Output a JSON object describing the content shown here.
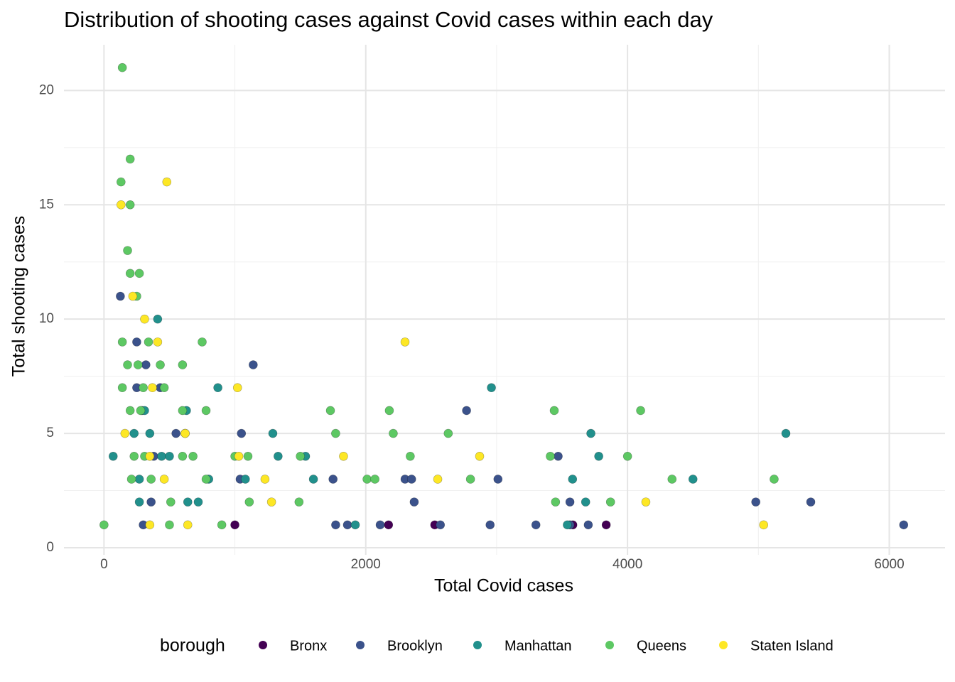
{
  "chart_data": {
    "type": "scatter",
    "title": "Distribution of shooting cases against Covid cases within each day",
    "x_label": "Total Covid cases",
    "y_label": "Total shooting cases",
    "legend_title": "borough",
    "legend_position": "bottom",
    "grid": true,
    "xlim": [
      -306,
      6426
    ],
    "ylim": [
      0,
      22
    ],
    "xticks": [
      0,
      2000,
      4000,
      6000
    ],
    "yticks": [
      0,
      5,
      10,
      15,
      20
    ],
    "x_minor_ticks": [
      1000,
      3000,
      5000
    ],
    "y_minor_ticks": [
      2.5,
      7.5,
      12.5,
      17.5
    ],
    "series": [
      {
        "name": "Bronx",
        "color": "#440154",
        "x": [
          1000,
          2174,
          2527,
          3582,
          3837
        ],
        "values": [
          1,
          1,
          1,
          1,
          1
        ]
      },
      {
        "name": "Brooklyn",
        "color": "#3b528b",
        "x": [
          125,
          250,
          250,
          320,
          290,
          430,
          550,
          380,
          360,
          300,
          1140,
          1050,
          1040,
          1750,
          1770,
          1860,
          2110,
          2300,
          2350,
          2370,
          2570,
          2770,
          2950,
          3010,
          3300,
          3470,
          3560,
          3560,
          3700,
          4980,
          5400,
          6110
        ],
        "values": [
          11,
          9,
          7,
          8,
          6,
          7,
          5,
          4,
          2,
          1,
          8,
          5,
          3,
          3,
          1,
          1,
          1,
          3,
          3,
          2,
          1,
          6,
          1,
          3,
          1,
          4,
          2,
          1,
          1,
          2,
          2,
          1
        ]
      },
      {
        "name": "Manhattan",
        "color": "#21908c",
        "x": [
          70,
          270,
          230,
          270,
          310,
          350,
          410,
          440,
          500,
          630,
          640,
          720,
          800,
          870,
          1080,
          1290,
          1330,
          1540,
          1600,
          1920,
          2960,
          3580,
          3540,
          3680,
          3720,
          3780,
          4500,
          5210
        ],
        "values": [
          4,
          2,
          5,
          3,
          6,
          5,
          10,
          4,
          4,
          6,
          2,
          2,
          3,
          7,
          3,
          5,
          4,
          4,
          3,
          1,
          7,
          3,
          1,
          2,
          5,
          4,
          3,
          5
        ]
      },
      {
        "name": "Queens",
        "color": "#5dc863",
        "x": [
          0,
          140,
          130,
          200,
          200,
          180,
          200,
          270,
          250,
          140,
          180,
          140,
          200,
          230,
          210,
          260,
          280,
          340,
          300,
          310,
          360,
          430,
          460,
          510,
          500,
          600,
          600,
          600,
          620,
          680,
          750,
          780,
          780,
          900,
          1000,
          1100,
          1110,
          1490,
          1500,
          1730,
          1770,
          2010,
          2070,
          2180,
          2210,
          2340,
          2630,
          2800,
          3440,
          3410,
          3450,
          3870,
          4000,
          4100,
          4340,
          5120
        ],
        "values": [
          1,
          21,
          16,
          17,
          15,
          13,
          12,
          12,
          11,
          9,
          8,
          7,
          6,
          4,
          3,
          8,
          6,
          9,
          7,
          4,
          3,
          8,
          7,
          2,
          1,
          8,
          6,
          4,
          5,
          4,
          9,
          6,
          3,
          1,
          4,
          4,
          2,
          2,
          4,
          6,
          5,
          3,
          3,
          6,
          5,
          4,
          5,
          3,
          6,
          4,
          2,
          2,
          4,
          6,
          3,
          3
        ]
      },
      {
        "name": "Staten Island",
        "color": "#fde725",
        "x": [
          130,
          160,
          220,
          310,
          370,
          410,
          480,
          460,
          350,
          350,
          620,
          640,
          1020,
          1030,
          1230,
          1280,
          1830,
          2300,
          2550,
          2870,
          4140,
          5040
        ],
        "values": [
          15,
          5,
          11,
          10,
          7,
          9,
          16,
          3,
          4,
          1,
          5,
          1,
          7,
          4,
          3,
          2,
          4,
          9,
          3,
          4,
          2,
          1
        ]
      }
    ]
  }
}
